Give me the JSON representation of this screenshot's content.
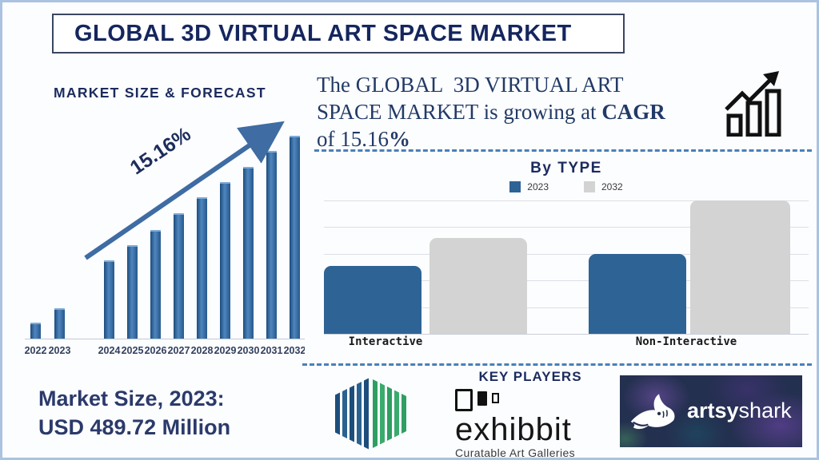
{
  "banner": {
    "title": "GLOBAL 3D VIRTUAL ART SPACE MARKET"
  },
  "cagr_paragraph": {
    "line1": "The GLOBAL  3D VIRTUAL ART",
    "line2_text": "SPACE MARKET is growing at ",
    "line2_bold": "CAGR",
    "line3_text": "of 15.16",
    "line3_bold": "%"
  },
  "market_size_note": {
    "line1": "Market Size, 2023:",
    "line2": "USD 489.72 Million"
  },
  "key_players": {
    "heading": "KEY PLAYERS",
    "exhibbit_name": "exhibbit",
    "exhibbit_tagline": "Curatable Art Galleries",
    "artsyshark_bold": "artsy",
    "artsyshark_light": "shark"
  },
  "colors": {
    "accent_navy": "#1b2a5e",
    "steel_blue": "#3e6ca3",
    "bar_blue": "#2e6396",
    "bar_gray": "#d3d3d3",
    "border_blue": "#a9c3e1"
  },
  "chart_data": [
    {
      "type": "bar",
      "name": "market-size-forecast",
      "title": "MARKET SIZE & FORECAST",
      "annotation": "15.16%",
      "categories": [
        "2022",
        "2023",
        "2024",
        "2025",
        "2026",
        "2027",
        "2028",
        "2029",
        "2030",
        "2031",
        "2032"
      ],
      "values_pct_of_max": [
        8,
        15,
        38.5,
        46,
        53.5,
        62,
        69.5,
        77,
        84.5,
        92.5,
        100
      ],
      "bar_color": "#2e6396",
      "ylabel": "",
      "xlabel": "",
      "grid": false,
      "legend_position": "none"
    },
    {
      "type": "bar",
      "name": "by-type",
      "title": "By TYPE",
      "categories": [
        "Interactive",
        "Non-Interactive"
      ],
      "series": [
        {
          "name": "2023",
          "color": "#2e6396",
          "values_pct_of_max": [
            51,
            60
          ]
        },
        {
          "name": "2032",
          "color": "#d3d3d3",
          "values_pct_of_max": [
            72,
            100
          ]
        }
      ],
      "gridlines": 6,
      "grid": true,
      "legend_position": "top"
    }
  ]
}
